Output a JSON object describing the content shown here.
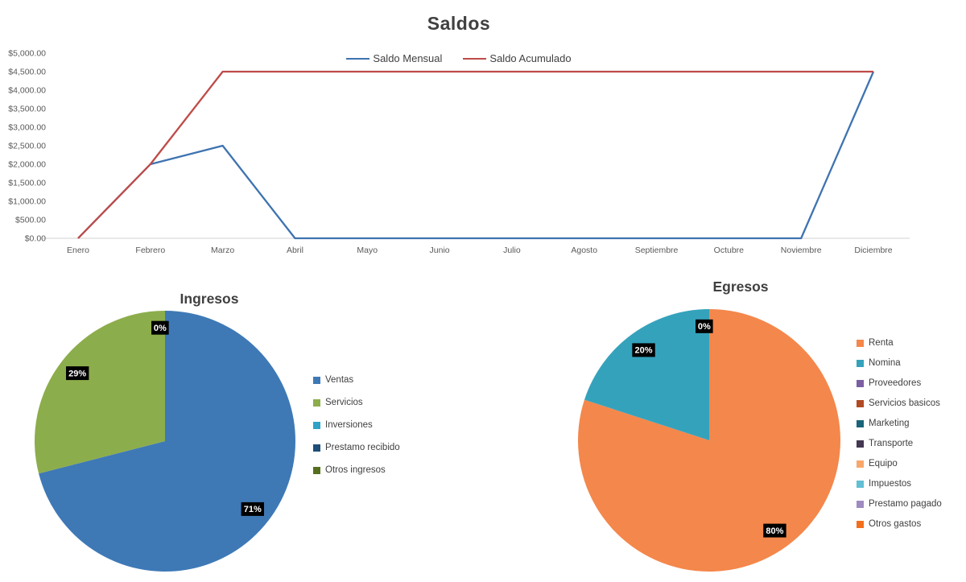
{
  "page": {
    "background": "#FFFFFF"
  },
  "chart_data": [
    {
      "type": "line",
      "title": "Saldos",
      "categories": [
        "Enero",
        "Febrero",
        "Marzo",
        "Abril",
        "Mayo",
        "Junio",
        "Julio",
        "Agosto",
        "Septiembre",
        "Octubre",
        "Noviembre",
        "Diciembre"
      ],
      "series": [
        {
          "name": "Saldo Mensual",
          "color": "#3E73B0",
          "values": [
            0,
            2000,
            2500,
            0,
            0,
            0,
            0,
            0,
            0,
            0,
            0,
            4500
          ]
        },
        {
          "name": "Saldo Acumulado",
          "color": "#BE4B48",
          "values": [
            0,
            2000,
            4500,
            4500,
            4500,
            4500,
            4500,
            4500,
            4500,
            4500,
            4500,
            4500
          ]
        }
      ],
      "ylim": [
        0,
        5000
      ],
      "ytick_step": 500,
      "ytick_labels": [
        "$0.00",
        "$500.00",
        "$1,000.00",
        "$1,500.00",
        "$2,000.00",
        "$2,500.00",
        "$3,000.00",
        "$3,500.00",
        "$4,000.00",
        "$4,500.00",
        "$5,000.00"
      ],
      "grid": false,
      "legend_position": "top",
      "axis_color": "#D9D9D9",
      "tick_label_color": "#595959",
      "title_color": "#404040"
    },
    {
      "type": "pie",
      "title": "Ingresos",
      "categories": [
        "Ventas",
        "Servicios",
        "Inversiones",
        "Prestamo recibido",
        "Otros ingresos"
      ],
      "values": [
        71,
        29,
        0,
        0,
        0
      ],
      "colors": [
        "#3E79B6",
        "#8CAD4B",
        "#2EA3C7",
        "#1F4E79",
        "#556F1F"
      ],
      "data_labels_visible": [
        "0%",
        "71%",
        "29%"
      ],
      "label_bg": "#000000",
      "label_color": "#FFFFFF",
      "legend_position": "right"
    },
    {
      "type": "pie",
      "title": "Egresos",
      "categories": [
        "Renta",
        "Nomina",
        "Proveedores",
        "Servicios basicos",
        "Marketing",
        "Transporte",
        "Equipo",
        "Impuestos",
        "Prestamo pagado",
        "Otros gastos"
      ],
      "values": [
        80,
        20,
        0,
        0,
        0,
        0,
        0,
        0,
        0,
        0
      ],
      "colors": [
        "#F4874B",
        "#35A2BC",
        "#7C5FA2",
        "#B04A23",
        "#19647A",
        "#433752",
        "#F9A76C",
        "#62BFD4",
        "#9F8BC1",
        "#F2701D"
      ],
      "data_labels_visible": [
        "0%",
        "20%",
        "80%"
      ],
      "label_bg": "#000000",
      "label_color": "#FFFFFF",
      "legend_position": "right"
    }
  ]
}
